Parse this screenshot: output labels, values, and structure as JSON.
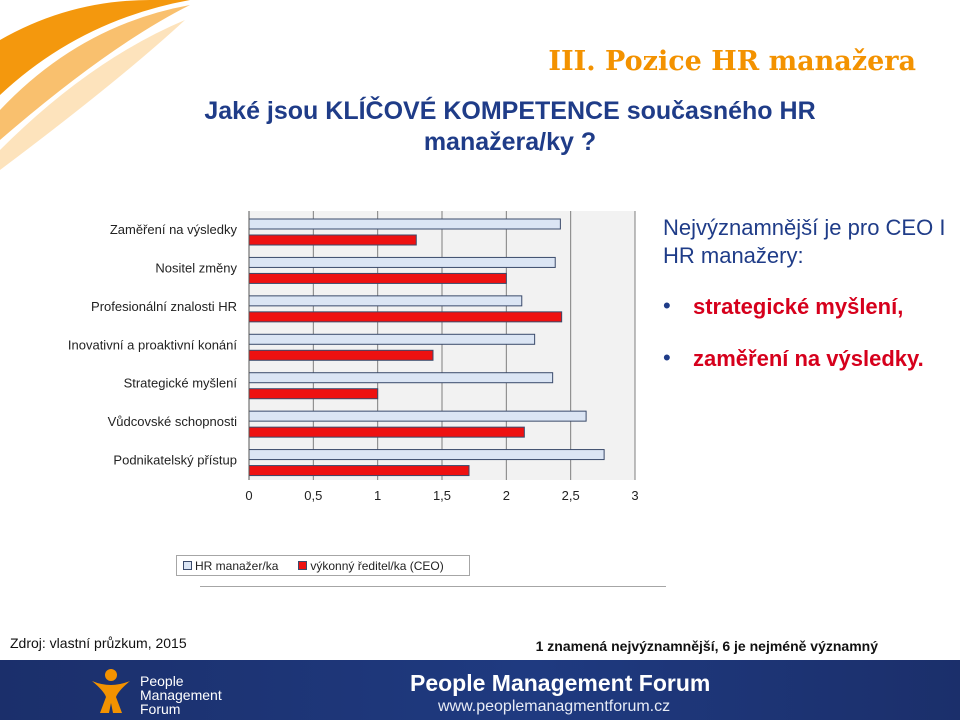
{
  "slide": {
    "section_title": "III. Pozice HR manažera",
    "question": "Jaké jsou KLÍČOVÉ KOMPETENCE současného HR manažera/ky ?",
    "side_heading": "Nejvýznamnější je pro CEO I HR manažery:",
    "bullets": [
      "strategické myšlení,",
      "zaměření na výsledky."
    ],
    "bullet_char": "•",
    "source": "Zdroj: vlastní průzkum, 2015",
    "scale_note": "1 znamená nejvýznamnější, 6 je nejméně významný"
  },
  "legend": {
    "hr_label": "HR manažer/ka",
    "ceo_label": "výkonný ředitel/ka (CEO)"
  },
  "footer": {
    "logo_lines": [
      "People",
      "Management",
      "Forum"
    ],
    "brand": "People Management Forum",
    "url": "www.peoplemanagmentforum.cz"
  },
  "colors": {
    "accent_orange": "#f39200",
    "title_blue": "#1f3c88",
    "hr_fill": "#dbe5f4",
    "ceo_fill": "#ee1111",
    "footer_bg": "#1b2f6b"
  },
  "chart_data": {
    "type": "bar",
    "orientation": "horizontal",
    "categories": [
      "Zaměření na výsledky",
      "Nositel změny",
      "Profesionální znalosti HR",
      "Inovativní a proaktivní konání",
      "Strategické myšlení",
      "Vůdcovské schopnosti",
      "Podnikatelský přístup"
    ],
    "series": [
      {
        "name": "HR manažer/ka",
        "values": [
          2.42,
          2.38,
          2.12,
          2.22,
          2.36,
          2.62,
          2.76
        ]
      },
      {
        "name": "výkonný ředitel/ka (CEO)",
        "values": [
          1.3,
          2.0,
          2.43,
          1.43,
          1.0,
          2.14,
          1.71
        ]
      }
    ],
    "xlim": [
      0,
      3
    ],
    "xticks": [
      "0",
      "0,5",
      "1",
      "1,5",
      "2",
      "2,5",
      "3"
    ],
    "grid": true,
    "legend_position": "bottom"
  }
}
